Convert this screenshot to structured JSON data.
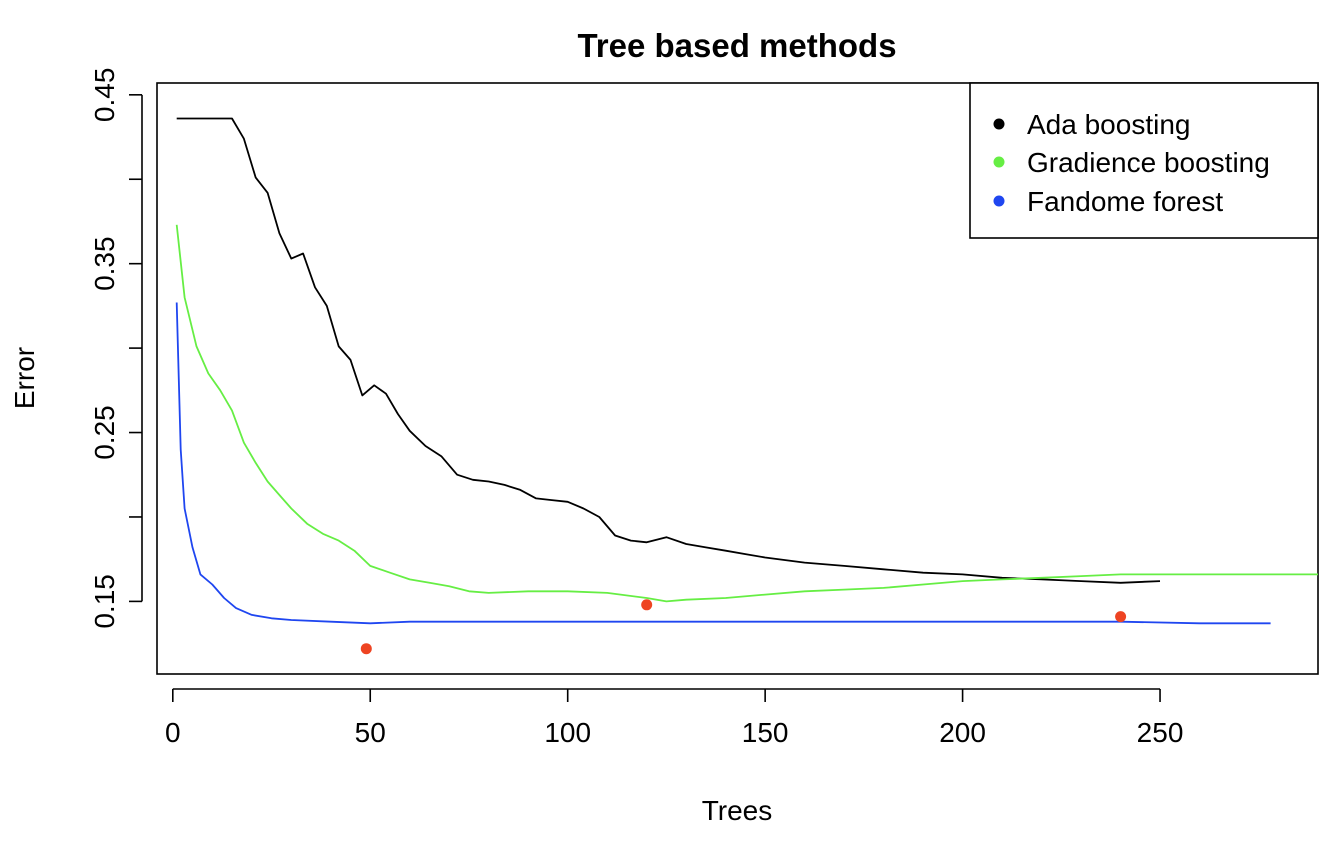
{
  "chart_data": {
    "type": "line",
    "title": "Tree based methods",
    "xlabel": "Trees",
    "ylabel": "Error",
    "xlim": [
      -4,
      290
    ],
    "ylim": [
      0.107,
      0.457
    ],
    "x_ticks": [
      0,
      50,
      100,
      150,
      200,
      250
    ],
    "x_tick_labels": [
      "0",
      "50",
      "100",
      "150",
      "200",
      "250"
    ],
    "y_ticks": [
      0.15,
      0.2,
      0.25,
      0.3,
      0.35,
      0.4,
      0.45
    ],
    "y_tick_labels": [
      "0.15",
      "",
      "0.25",
      "",
      "0.35",
      "",
      "0.45"
    ],
    "grid": false,
    "legend_position": "top-right",
    "series": [
      {
        "name": "Ada boosting",
        "color": "#000000",
        "x_start": 1,
        "x_end": 250,
        "points": [
          [
            1,
            0.436
          ],
          [
            15,
            0.436
          ],
          [
            18,
            0.424
          ],
          [
            21,
            0.401
          ],
          [
            24,
            0.392
          ],
          [
            27,
            0.368
          ],
          [
            30,
            0.353
          ],
          [
            33,
            0.356
          ],
          [
            36,
            0.336
          ],
          [
            39,
            0.325
          ],
          [
            42,
            0.301
          ],
          [
            45,
            0.293
          ],
          [
            48,
            0.272
          ],
          [
            51,
            0.278
          ],
          [
            54,
            0.273
          ],
          [
            57,
            0.261
          ],
          [
            60,
            0.251
          ],
          [
            64,
            0.242
          ],
          [
            68,
            0.236
          ],
          [
            72,
            0.225
          ],
          [
            76,
            0.222
          ],
          [
            80,
            0.221
          ],
          [
            84,
            0.219
          ],
          [
            88,
            0.216
          ],
          [
            92,
            0.211
          ],
          [
            96,
            0.21
          ],
          [
            100,
            0.209
          ],
          [
            104,
            0.205
          ],
          [
            108,
            0.2
          ],
          [
            112,
            0.189
          ],
          [
            116,
            0.186
          ],
          [
            120,
            0.185
          ],
          [
            125,
            0.188
          ],
          [
            130,
            0.184
          ],
          [
            135,
            0.182
          ],
          [
            140,
            0.18
          ],
          [
            145,
            0.178
          ],
          [
            150,
            0.176
          ],
          [
            160,
            0.173
          ],
          [
            170,
            0.171
          ],
          [
            180,
            0.169
          ],
          [
            190,
            0.167
          ],
          [
            200,
            0.166
          ],
          [
            210,
            0.164
          ],
          [
            220,
            0.163
          ],
          [
            230,
            0.162
          ],
          [
            240,
            0.161
          ],
          [
            250,
            0.162
          ]
        ]
      },
      {
        "name": "Gradience boosting",
        "color": "#66ee44",
        "x_start": 1,
        "x_end": 290,
        "points": [
          [
            1,
            0.373
          ],
          [
            3,
            0.33
          ],
          [
            6,
            0.301
          ],
          [
            9,
            0.285
          ],
          [
            12,
            0.275
          ],
          [
            15,
            0.263
          ],
          [
            18,
            0.244
          ],
          [
            21,
            0.232
          ],
          [
            24,
            0.221
          ],
          [
            27,
            0.213
          ],
          [
            30,
            0.205
          ],
          [
            34,
            0.196
          ],
          [
            38,
            0.19
          ],
          [
            42,
            0.186
          ],
          [
            46,
            0.18
          ],
          [
            50,
            0.171
          ],
          [
            55,
            0.167
          ],
          [
            60,
            0.163
          ],
          [
            65,
            0.161
          ],
          [
            70,
            0.159
          ],
          [
            75,
            0.156
          ],
          [
            80,
            0.155
          ],
          [
            90,
            0.156
          ],
          [
            100,
            0.156
          ],
          [
            110,
            0.155
          ],
          [
            120,
            0.152
          ],
          [
            125,
            0.15
          ],
          [
            130,
            0.151
          ],
          [
            140,
            0.152
          ],
          [
            150,
            0.154
          ],
          [
            160,
            0.156
          ],
          [
            170,
            0.157
          ],
          [
            180,
            0.158
          ],
          [
            190,
            0.16
          ],
          [
            200,
            0.162
          ],
          [
            210,
            0.163
          ],
          [
            220,
            0.164
          ],
          [
            230,
            0.165
          ],
          [
            240,
            0.166
          ],
          [
            250,
            0.166
          ],
          [
            260,
            0.166
          ],
          [
            270,
            0.166
          ],
          [
            280,
            0.166
          ],
          [
            290,
            0.166
          ]
        ]
      },
      {
        "name": "Fandome forest",
        "color": "#1f46f0",
        "x_start": 1,
        "x_end": 278,
        "points": [
          [
            1,
            0.327
          ],
          [
            2,
            0.24
          ],
          [
            3,
            0.205
          ],
          [
            5,
            0.182
          ],
          [
            7,
            0.166
          ],
          [
            10,
            0.16
          ],
          [
            13,
            0.152
          ],
          [
            16,
            0.146
          ],
          [
            20,
            0.142
          ],
          [
            25,
            0.14
          ],
          [
            30,
            0.139
          ],
          [
            40,
            0.138
          ],
          [
            50,
            0.137
          ],
          [
            60,
            0.138
          ],
          [
            70,
            0.138
          ],
          [
            80,
            0.138
          ],
          [
            90,
            0.138
          ],
          [
            100,
            0.138
          ],
          [
            120,
            0.138
          ],
          [
            140,
            0.138
          ],
          [
            160,
            0.138
          ],
          [
            180,
            0.138
          ],
          [
            200,
            0.138
          ],
          [
            220,
            0.138
          ],
          [
            240,
            0.138
          ],
          [
            260,
            0.137
          ],
          [
            278,
            0.137
          ]
        ]
      }
    ],
    "minimum_points": {
      "color": "#ee4422",
      "points": [
        [
          49,
          0.122
        ],
        [
          120,
          0.148
        ],
        [
          240,
          0.141
        ]
      ]
    }
  }
}
